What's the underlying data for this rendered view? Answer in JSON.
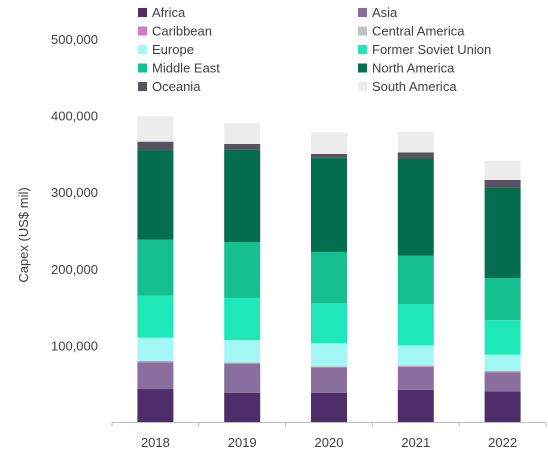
{
  "chart_data": {
    "type": "bar",
    "stacked": true,
    "title": "",
    "xlabel": "",
    "ylabel": "Capex (US$ mil)",
    "ylim": [
      0,
      500000
    ],
    "yticks": [
      100000,
      200000,
      300000,
      400000,
      500000
    ],
    "ytick_labels": [
      "100,000",
      "200,000",
      "300,000",
      "400,000",
      "500,000"
    ],
    "grid": false,
    "legend_position": "top",
    "categories": [
      "2018",
      "2019",
      "2020",
      "2021",
      "2022"
    ],
    "series": [
      {
        "name": "Africa",
        "color": "#4f2d6b",
        "values": [
          43000,
          38000,
          38000,
          42000,
          40000
        ]
      },
      {
        "name": "Asia",
        "color": "#8a6f9e",
        "values": [
          35000,
          38000,
          33000,
          30000,
          25000
        ]
      },
      {
        "name": "Caribbean",
        "color": "#d37bc0",
        "values": [
          1000,
          1000,
          1000,
          1000,
          1000
        ]
      },
      {
        "name": "Central America",
        "color": "#b8c4c4",
        "values": [
          1000,
          1000,
          1000,
          1000,
          1000
        ]
      },
      {
        "name": "Europe",
        "color": "#a3f7f5",
        "values": [
          30000,
          29000,
          30000,
          26000,
          21000
        ]
      },
      {
        "name": "Former Soviet Union",
        "color": "#1ee8b8",
        "values": [
          55000,
          55000,
          52000,
          54000,
          45000
        ]
      },
      {
        "name": "Middle East",
        "color": "#15bf8f",
        "values": [
          73000,
          73000,
          67000,
          63000,
          55000
        ]
      },
      {
        "name": "North America",
        "color": "#046e4e",
        "values": [
          117000,
          121000,
          123000,
          127000,
          118000
        ]
      },
      {
        "name": "Oceania",
        "color": "#58525e",
        "values": [
          11000,
          7000,
          5000,
          8000,
          10000
        ]
      },
      {
        "name": "South America",
        "color": "#ececec",
        "values": [
          33000,
          27000,
          28000,
          27000,
          25000
        ]
      }
    ]
  }
}
